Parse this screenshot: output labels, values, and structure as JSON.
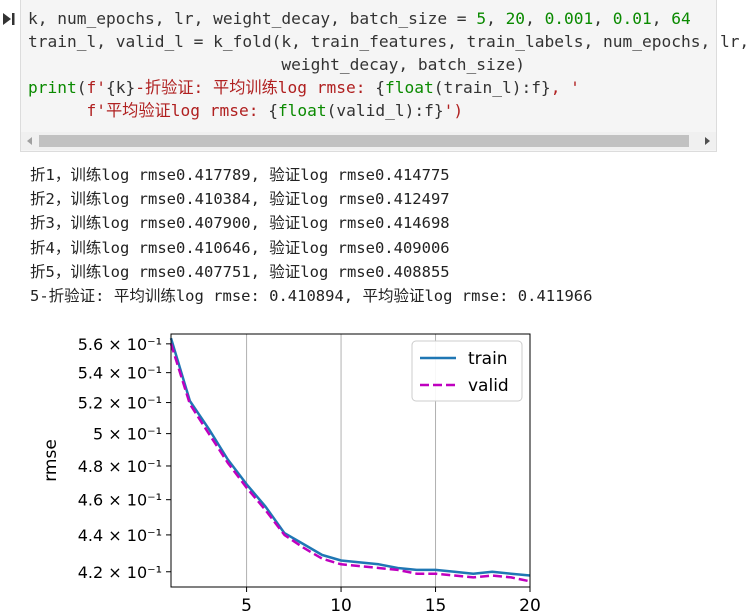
{
  "code_lines": [
    [
      {
        "t": "k, num_epochs, lr, weight_decay, batch_size = "
      },
      {
        "t": "5",
        "c": "num"
      },
      {
        "t": ", "
      },
      {
        "t": "20",
        "c": "num"
      },
      {
        "t": ", "
      },
      {
        "t": "0.001",
        "c": "num"
      },
      {
        "t": ", "
      },
      {
        "t": "0.01",
        "c": "num"
      },
      {
        "t": ", "
      },
      {
        "t": "64",
        "c": "num"
      }
    ],
    [
      {
        "t": "train_l, valid_l = k_fold(k, train_features, train_labels, num_epochs, lr,"
      }
    ],
    [
      {
        "t": "                          weight_decay, batch_size)"
      }
    ],
    [
      {
        "t": "print",
        "c": "kw"
      },
      {
        "t": "("
      },
      {
        "t": "f'",
        "c": "str"
      },
      {
        "t": "{k}"
      },
      {
        "t": "-折验证: 平均训练log rmse: ",
        "c": "str"
      },
      {
        "t": "{"
      },
      {
        "t": "float",
        "c": "kw"
      },
      {
        "t": "(train_l):f}"
      },
      {
        "t": ", '",
        "c": "str"
      }
    ],
    [
      {
        "t": "      "
      },
      {
        "t": "f'平均验证log rmse: ",
        "c": "str"
      },
      {
        "t": "{"
      },
      {
        "t": "float",
        "c": "kw"
      },
      {
        "t": "(valid_l):f}"
      },
      {
        "t": "')",
        "c": "str"
      }
    ]
  ],
  "output_lines": [
    "折1，训练log rmse0.417789, 验证log rmse0.414775",
    "折2，训练log rmse0.410384, 验证log rmse0.412497",
    "折3，训练log rmse0.407900, 验证log rmse0.414698",
    "折4，训练log rmse0.410646, 验证log rmse0.409006",
    "折5，训练log rmse0.407751, 验证log rmse0.408855",
    "5-折验证: 平均训练log rmse: 0.410894, 平均验证log rmse: 0.411966"
  ],
  "chart_data": {
    "type": "line",
    "xlabel": "",
    "ylabel": "rmse",
    "yscale": "log",
    "xlim": [
      1,
      20
    ],
    "ylim": [
      0.412,
      0.567
    ],
    "xticks": [
      5,
      10,
      15,
      20
    ],
    "yticks": [
      {
        "value": 0.56,
        "label": "5.6 × 10⁻¹"
      },
      {
        "value": 0.54,
        "label": "5.4 × 10⁻¹"
      },
      {
        "value": 0.52,
        "label": "5.2 × 10⁻¹"
      },
      {
        "value": 0.5,
        "label": "5 × 10⁻¹"
      },
      {
        "value": 0.48,
        "label": "4.8 × 10⁻¹"
      },
      {
        "value": 0.46,
        "label": "4.6 × 10⁻¹"
      },
      {
        "value": 0.44,
        "label": "4.4 × 10⁻¹"
      },
      {
        "value": 0.42,
        "label": "4.2 × 10⁻¹"
      }
    ],
    "x": [
      1,
      2,
      3,
      4,
      5,
      6,
      7,
      8,
      9,
      10,
      11,
      12,
      13,
      14,
      15,
      16,
      17,
      18,
      19,
      20
    ],
    "series": [
      {
        "name": "train",
        "color": "#1f77b4",
        "dash": false,
        "values": [
          0.564,
          0.521,
          0.503,
          0.484,
          0.469,
          0.456,
          0.441,
          0.435,
          0.429,
          0.426,
          0.425,
          0.424,
          0.422,
          0.421,
          0.421,
          0.42,
          0.419,
          0.42,
          0.419,
          0.418
        ]
      },
      {
        "name": "valid",
        "color": "#bf00bf",
        "dash": true,
        "values": [
          0.56,
          0.519,
          0.5,
          0.482,
          0.467,
          0.454,
          0.44,
          0.433,
          0.427,
          0.424,
          0.423,
          0.422,
          0.421,
          0.419,
          0.419,
          0.418,
          0.417,
          0.418,
          0.417,
          0.415
        ]
      }
    ],
    "legend": "top-right",
    "grid_x": true
  }
}
